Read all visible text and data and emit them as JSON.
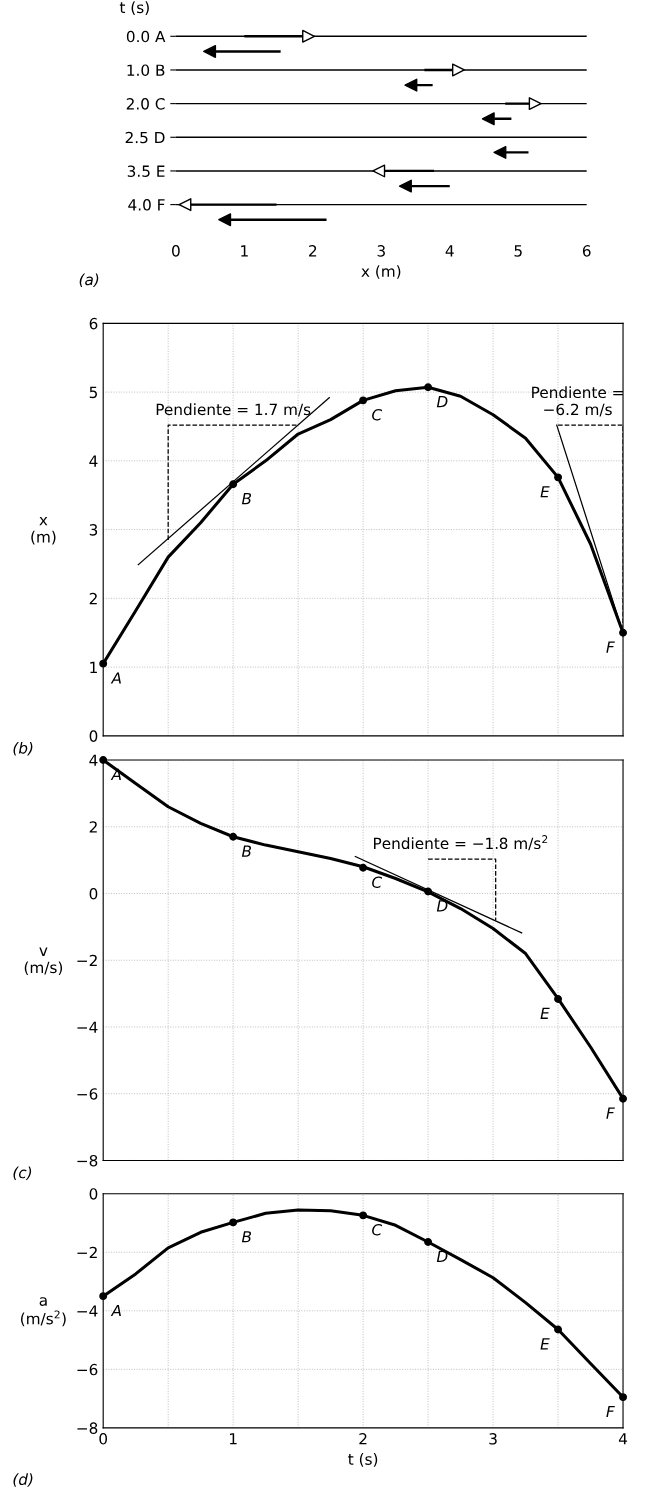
{
  "chart_data": [
    {
      "type": "scatter",
      "orientation": "horizontal",
      "categories": [
        "0.0 A",
        "1.0 B",
        "2.0 C",
        "2.5 D",
        "3.5 E",
        "4.0 F"
      ],
      "ylabel": "t (s)",
      "xlabel": "x (m)",
      "xlim": [
        0,
        6
      ],
      "xticks": [
        0,
        1,
        2,
        3,
        4,
        5,
        6
      ],
      "grid": "y",
      "annotations": [
        "(a)"
      ],
      "series": [
        {
          "type": "bar",
          "color": "#000000",
          "base": [
            1.0,
            3.63,
            4.81,
            null,
            3.77,
            1.47
          ],
          "values": [
            0.85,
            0.41,
            0.35,
            null,
            -0.72,
            -1.25
          ]
        },
        {
          "type": "bar",
          "color": "#000000",
          "base": [
            1.53,
            3.75,
            4.9,
            5.15,
            4.0,
            2.2
          ],
          "values": [
            -0.95,
            -0.23,
            -0.25,
            -0.33,
            -0.56,
            -1.4
          ]
        }
      ]
    },
    {
      "type": "line",
      "x": [
        0,
        0.25,
        0.5,
        0.75,
        1,
        1.25,
        1.5,
        1.75,
        2,
        2.25,
        2.5,
        2.75,
        3,
        3.25,
        3.5,
        3.75,
        4
      ],
      "ylabel": "x\n(m)",
      "xlim": [
        0,
        4
      ],
      "ylim": [
        0,
        6
      ],
      "xticks": [
        0,
        0.5,
        1,
        1.5,
        2,
        2.5,
        3,
        3.5,
        4
      ],
      "yticks": [
        0,
        1,
        2,
        3,
        4,
        5,
        6
      ],
      "tick_labels": "y",
      "grid": true,
      "annotations": [
        "(b)",
        {
          "text": "A",
          "x": 0,
          "y": 1.05
        },
        {
          "text": "B",
          "x": 1,
          "y": 3.66
        },
        {
          "text": "C",
          "x": 2,
          "y": 4.88
        },
        {
          "text": "D",
          "x": 2.5,
          "y": 5.07
        },
        {
          "text": "E",
          "x": 3.5,
          "y": 3.76
        },
        {
          "text": "F",
          "x": 4,
          "y": 1.5
        },
        {
          "text": "Pendiente = 1.7 m/s",
          "x": 1.0,
          "y": 4.52
        },
        {
          "text": "Pendiente =\n−6.2 m/s",
          "x": 3.65,
          "y": 4.52
        }
      ],
      "series": [
        {
          "color": "#000000",
          "values": [
            1.05,
            1.82,
            2.6,
            3.1,
            3.66,
            4.0,
            4.39,
            4.6,
            4.88,
            5.02,
            5.07,
            4.94,
            4.67,
            4.33,
            3.76,
            2.79,
            1.5
          ]
        },
        {
          "type": "line",
          "color": "#000000",
          "x": [
            0.27,
            1.74
          ],
          "values": [
            2.49,
            4.92
          ]
        },
        {
          "type": "line",
          "color": "#000000",
          "line_style": "dashed",
          "x": [
            0.5,
            0.5,
            1.5
          ],
          "values": [
            2.85,
            4.52,
            4.52
          ]
        },
        {
          "type": "line",
          "color": "#000000",
          "x": [
            3.49,
            4
          ],
          "values": [
            4.52,
            1.5
          ]
        },
        {
          "type": "line",
          "color": "#000000",
          "line_style": "dashed",
          "x": [
            3.5,
            4,
            4
          ],
          "values": [
            4.52,
            4.52,
            1.5
          ]
        },
        {
          "type": "scatter",
          "color": "#000000",
          "marker": "circle",
          "x": [
            0,
            1,
            2,
            2.5,
            3.5,
            4
          ],
          "values": [
            1.05,
            3.66,
            4.88,
            5.07,
            3.76,
            1.5
          ]
        }
      ]
    },
    {
      "type": "line",
      "x": [
        0,
        0.25,
        0.5,
        0.75,
        1,
        1.25,
        1.5,
        1.75,
        2,
        2.25,
        2.5,
        2.75,
        3,
        3.25,
        3.5,
        3.75,
        4
      ],
      "ylabel": "v\n(m/s)",
      "xlim": [
        0,
        4
      ],
      "ylim": [
        -8,
        4
      ],
      "xticks": [
        0,
        0.5,
        1,
        1.5,
        2,
        2.5,
        3,
        3.5,
        4
      ],
      "yticks": [
        -8,
        -6,
        -4,
        -2,
        0,
        2,
        4
      ],
      "tick_labels": "y",
      "grid": true,
      "annotations": [
        "(c)",
        {
          "text": "A",
          "x": 0,
          "y": 4.0
        },
        {
          "text": "B",
          "x": 1,
          "y": 1.7
        },
        {
          "text": "C",
          "x": 2,
          "y": 0.77
        },
        {
          "text": "D",
          "x": 2.5,
          "y": 0.06
        },
        {
          "text": "E",
          "x": 3.5,
          "y": -3.16
        },
        {
          "text": "F",
          "x": 4,
          "y": -6.15
        },
        {
          "text": "Pendiente = −1.8 m/s$^{2}$",
          "x": 2.75,
          "y": 1.03
        }
      ],
      "series": [
        {
          "color": "#000000",
          "values": [
            4.0,
            3.3,
            2.6,
            2.1,
            1.7,
            1.45,
            1.25,
            1.05,
            0.8,
            0.45,
            0.05,
            -0.45,
            -1.05,
            -1.8,
            -3.15,
            -4.6,
            -6.15
          ]
        },
        {
          "type": "line",
          "color": "#000000",
          "x": [
            1.94,
            3.22
          ],
          "values": [
            1.11,
            -1.18
          ]
        },
        {
          "type": "line",
          "color": "#000000",
          "line_style": "dashed",
          "x": [
            2.5,
            3.02,
            3.02
          ],
          "values": [
            1.03,
            1.03,
            -0.8
          ]
        },
        {
          "type": "scatter",
          "color": "#000000",
          "marker": "circle",
          "x": [
            0,
            1,
            2,
            2.5,
            3.5,
            4
          ],
          "values": [
            4.0,
            1.7,
            0.77,
            0.06,
            -3.16,
            -6.15
          ]
        }
      ]
    },
    {
      "type": "line",
      "x": [
        0,
        0.25,
        0.5,
        0.75,
        1,
        1.25,
        1.5,
        1.75,
        2,
        2.25,
        2.5,
        2.75,
        3,
        3.25,
        3.5,
        3.75,
        4
      ],
      "ylabel": "a\n(m/s$^{2}$)",
      "xlabel": "t (s)",
      "xlim": [
        0,
        4
      ],
      "ylim": [
        -8,
        0
      ],
      "xticks": [
        0,
        {
          "value": 0.5,
          "label": null
        },
        1,
        {
          "value": 1.5,
          "label": null
        },
        2,
        {
          "value": 2.5,
          "label": null
        },
        3,
        {
          "value": 3.5,
          "label": null
        },
        4
      ],
      "yticks": [
        -8,
        -6,
        -4,
        -2,
        0
      ],
      "grid": true,
      "annotations": [
        "(d)",
        {
          "text": "A",
          "x": 0,
          "y": -3.5
        },
        {
          "text": "B",
          "x": 1,
          "y": -0.98
        },
        {
          "text": "C",
          "x": 2,
          "y": -0.74
        },
        {
          "text": "D",
          "x": 2.5,
          "y": -1.65
        },
        {
          "text": "E",
          "x": 3.5,
          "y": -4.64
        },
        {
          "text": "F",
          "x": 4,
          "y": -6.95
        }
      ],
      "series": [
        {
          "color": "#000000",
          "values": [
            -3.5,
            -2.74,
            -1.85,
            -1.32,
            -0.98,
            -0.67,
            -0.56,
            -0.58,
            -0.74,
            -1.08,
            -1.65,
            -2.25,
            -2.87,
            -3.72,
            -4.64,
            -5.8,
            -6.95
          ]
        },
        {
          "type": "scatter",
          "color": "#000000",
          "marker": "circle",
          "x": [
            0,
            1,
            2,
            2.5,
            3.5,
            4
          ],
          "values": [
            -3.5,
            -0.98,
            -0.74,
            -1.65,
            -4.64,
            -6.95
          ]
        }
      ]
    }
  ]
}
